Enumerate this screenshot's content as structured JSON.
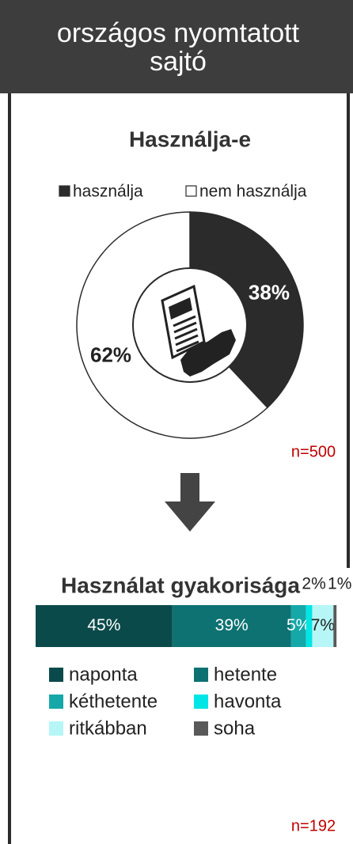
{
  "header": {
    "title_lines": [
      "országos nyomtatott",
      "sajtó"
    ]
  },
  "chart_data": [
    {
      "type": "donut",
      "title": "Használja-e",
      "categories": [
        "használja",
        "nem használja"
      ],
      "values": [
        38,
        62
      ],
      "value_labels": [
        "38%",
        "62%"
      ],
      "colors": [
        "#2b2b2b",
        "#ffffff"
      ],
      "annotation": "n=500"
    },
    {
      "type": "stacked-bar",
      "title": "Használat gyakorisága",
      "xlim": [
        0,
        100
      ],
      "series": [
        {
          "name": "naponta",
          "color": "#0b4a4a",
          "values": [
            45
          ],
          "value_labels": [
            "45%"
          ]
        },
        {
          "name": "hetente",
          "color": "#0e7272",
          "values": [
            39
          ],
          "value_labels": [
            "39%"
          ]
        },
        {
          "name": "kéthetente",
          "color": "#16a8a8",
          "values": [
            5
          ],
          "value_labels": [
            "5%"
          ]
        },
        {
          "name": "havonta",
          "color": "#00e5e5",
          "values": [
            2
          ],
          "value_labels": [
            "2%"
          ]
        },
        {
          "name": "ritkábban",
          "color": "#b6f6f6",
          "values": [
            7
          ],
          "value_labels": [
            "7%"
          ]
        },
        {
          "name": "soha",
          "color": "#595959",
          "values": [
            1
          ],
          "value_labels": [
            "1%"
          ]
        }
      ],
      "annotation": "n=192"
    }
  ]
}
